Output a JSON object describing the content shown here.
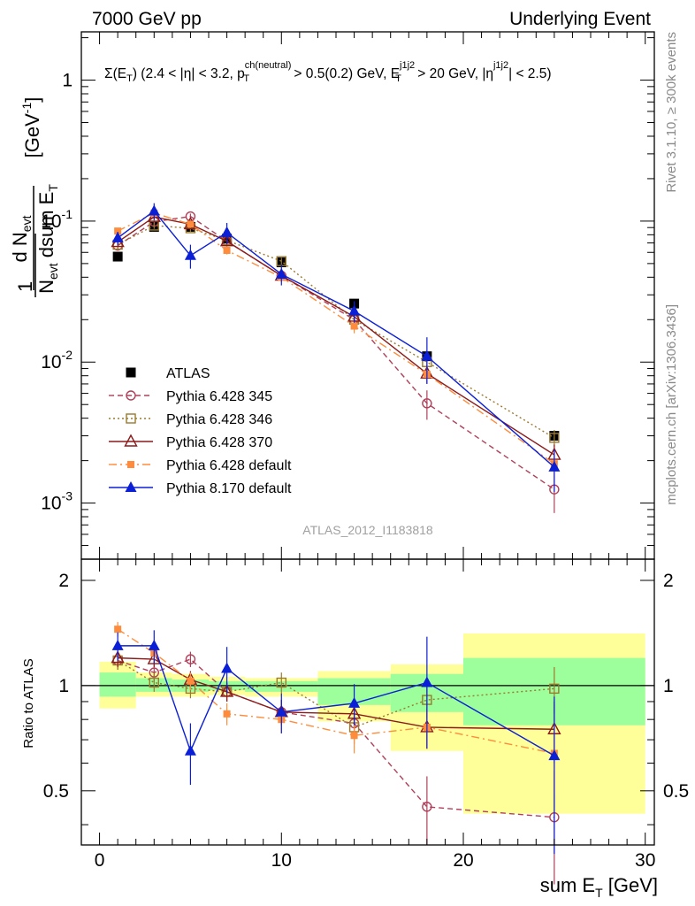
{
  "header": {
    "left": "7000 GeV pp",
    "right": "Underlying Event"
  },
  "selection": "Σ(E_T) (2.4 < |η| < 3.2, p_T^ch(neutral) > 0.5(0.2) GeV, E_T^j1j2 > 20 GeV, |η^j1j2| < 2.5)",
  "side_labels": {
    "rivet": "Rivet 3.1.10, ≥ 300k events",
    "mcplots": "mcplots.cern.ch [arXiv:1306.3436]"
  },
  "analysis_id": "ATLAS_2012_I1183818",
  "colors": {
    "atlas": "#000000",
    "p345": "#b0405a",
    "p346": "#9a7a2e",
    "p370": "#8b1a1a",
    "pdefault": "#ff8c3c",
    "p8": "#0b1fd6",
    "band_inner": "#9cff9c",
    "band_outer": "#ffff9a"
  },
  "chart_data": [
    {
      "type": "scatter",
      "panel": "main",
      "title": "",
      "ylabel": "1/N_evt dN_evt/dsum E_T [GeV^-1]",
      "xlabel": "",
      "xlim": [
        -1,
        30.5
      ],
      "ylim": [
        0.0004,
        2.2
      ],
      "yscale": "log",
      "y_ticks": [
        "10^-3",
        "10^-2",
        "10^-1",
        "1"
      ],
      "legend_position": "lower-left",
      "x": [
        1,
        3,
        5,
        7,
        10,
        14,
        18,
        25
      ],
      "series": [
        {
          "name": "ATLAS",
          "key": "atlas",
          "marker": "filled-square",
          "line": "none",
          "values": [
            0.056,
            0.091,
            0.091,
            0.075,
            0.051,
            0.026,
            0.011,
            0.003
          ],
          "errors": [
            0.002,
            0.003,
            0.003,
            0.003,
            0.002,
            0.001,
            0.0007,
            0.0002
          ]
        },
        {
          "name": "Pythia 6.428 345",
          "key": "p345",
          "marker": "open-circle",
          "line": "dashed",
          "values": [
            0.067,
            0.099,
            0.108,
            0.072,
            0.041,
            0.02,
            0.0051,
            0.00125
          ],
          "errors": [
            0.004,
            0.005,
            0.005,
            0.004,
            0.003,
            0.002,
            0.0012,
            0.0004
          ]
        },
        {
          "name": "Pythia 6.428 346",
          "key": "p346",
          "marker": "open-square",
          "line": "dotted",
          "values": [
            0.068,
            0.093,
            0.089,
            0.073,
            0.052,
            0.02,
            0.01,
            0.0029
          ],
          "errors": [
            0.004,
            0.005,
            0.005,
            0.004,
            0.003,
            0.002,
            0.0012,
            0.0004
          ]
        },
        {
          "name": "Pythia 6.428 370",
          "key": "p370",
          "marker": "open-triangle",
          "line": "solid",
          "values": [
            0.071,
            0.107,
            0.095,
            0.072,
            0.041,
            0.021,
            0.0083,
            0.0022
          ],
          "errors": [
            0.004,
            0.005,
            0.005,
            0.004,
            0.003,
            0.002,
            0.0012,
            0.0004
          ]
        },
        {
          "name": "Pythia 6.428 default",
          "key": "pdefault",
          "marker": "filled-small-square",
          "line": "dashdot",
          "values": [
            0.085,
            0.114,
            0.095,
            0.062,
            0.04,
            0.018,
            0.0082,
            0.0019
          ],
          "errors": [
            0.004,
            0.005,
            0.005,
            0.004,
            0.003,
            0.002,
            0.0012,
            0.0004
          ]
        },
        {
          "name": "Pythia 8.170 default",
          "key": "p8",
          "marker": "filled-triangle",
          "line": "solid",
          "values": [
            0.076,
            0.118,
            0.057,
            0.083,
            0.042,
            0.023,
            0.011,
            0.0018
          ],
          "errors": [
            0.008,
            0.016,
            0.011,
            0.014,
            0.007,
            0.004,
            0.004,
            0.0006
          ]
        }
      ]
    },
    {
      "type": "scatter",
      "panel": "ratio",
      "title": "",
      "ylabel": "Ratio to ATLAS",
      "xlabel": "sum E_T [GeV]",
      "xlim": [
        -1,
        30.5
      ],
      "ylim": [
        0.35,
        2.3
      ],
      "yscale": "log",
      "y_ticks": [
        "0.5",
        "1",
        "2"
      ],
      "x_ticks": [
        "0",
        "10",
        "20",
        "30"
      ],
      "bands": [
        {
          "x0": 0,
          "x1": 2,
          "inner": [
            0.93,
            1.09
          ],
          "outer": [
            0.86,
            1.17
          ]
        },
        {
          "x0": 2,
          "x1": 4,
          "inner": [
            0.96,
            1.05
          ],
          "outer": [
            0.93,
            1.09
          ]
        },
        {
          "x0": 4,
          "x1": 6,
          "inner": [
            0.96,
            1.04
          ],
          "outer": [
            0.93,
            1.08
          ]
        },
        {
          "x0": 6,
          "x1": 8,
          "inner": [
            0.97,
            1.03
          ],
          "outer": [
            0.94,
            1.06
          ]
        },
        {
          "x0": 8,
          "x1": 12,
          "inner": [
            0.96,
            1.03
          ],
          "outer": [
            0.93,
            1.05
          ]
        },
        {
          "x0": 12,
          "x1": 16,
          "inner": [
            0.88,
            1.05
          ],
          "outer": [
            0.79,
            1.1
          ]
        },
        {
          "x0": 16,
          "x1": 20,
          "inner": [
            0.84,
            1.08
          ],
          "outer": [
            0.65,
            1.15
          ]
        },
        {
          "x0": 20,
          "x1": 30,
          "inner": [
            0.77,
            1.2
          ],
          "outer": [
            0.43,
            1.41
          ]
        }
      ],
      "x": [
        1,
        3,
        5,
        7,
        10,
        14,
        18,
        25
      ],
      "series": [
        {
          "name": "Pythia 6.428 345",
          "key": "p345",
          "values": [
            1.18,
            1.09,
            1.19,
            0.96,
            0.84,
            0.78,
            0.45,
            0.42
          ],
          "errors": [
            0.07,
            0.06,
            0.06,
            0.06,
            0.07,
            0.08,
            0.1,
            0.15
          ]
        },
        {
          "name": "Pythia 6.428 346",
          "key": "p346",
          "values": [
            1.18,
            1.02,
            0.98,
            0.96,
            1.02,
            0.76,
            0.91,
            0.98
          ],
          "errors": [
            0.07,
            0.06,
            0.06,
            0.06,
            0.07,
            0.08,
            0.1,
            0.15
          ]
        },
        {
          "name": "Pythia 6.428 370",
          "key": "p370",
          "values": [
            1.2,
            1.19,
            1.04,
            0.96,
            0.84,
            0.83,
            0.76,
            0.75
          ],
          "errors": [
            0.07,
            0.06,
            0.06,
            0.06,
            0.07,
            0.08,
            0.1,
            0.15
          ]
        },
        {
          "name": "Pythia 6.428 default",
          "key": "pdefault",
          "values": [
            1.45,
            1.24,
            1.03,
            0.83,
            0.8,
            0.72,
            0.76,
            0.64
          ],
          "errors": [
            0.07,
            0.06,
            0.06,
            0.06,
            0.07,
            0.08,
            0.1,
            0.15
          ]
        },
        {
          "name": "Pythia 8.170 default",
          "key": "p8",
          "values": [
            1.3,
            1.3,
            0.65,
            1.12,
            0.84,
            0.89,
            1.02,
            0.63
          ],
          "errors": [
            0.12,
            0.14,
            0.13,
            0.17,
            0.11,
            0.12,
            0.36,
            0.3
          ]
        }
      ]
    }
  ]
}
